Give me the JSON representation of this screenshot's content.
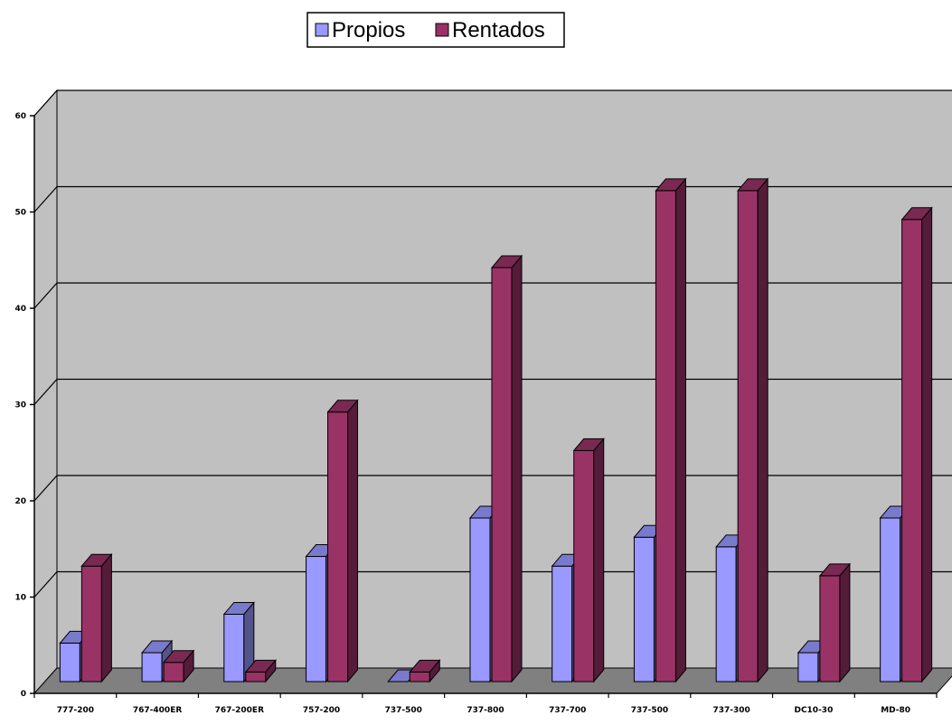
{
  "chart_data": {
    "type": "bar",
    "categories": [
      "777-200",
      "767-400ER",
      "767-200ER",
      "757-200",
      "737-500",
      "737-800",
      "737-700",
      "737-500",
      "737-300",
      "DC10-30",
      "MD-80"
    ],
    "series": [
      {
        "name": "Propios",
        "values": [
          4,
          3,
          7,
          13,
          0,
          17,
          12,
          15,
          14,
          3,
          17
        ],
        "color": "#9999ff"
      },
      {
        "name": "Rentados",
        "values": [
          12,
          2,
          1,
          28,
          1,
          43,
          24,
          51,
          51,
          11,
          48
        ],
        "color": "#993366"
      }
    ],
    "yticks": [
      "0",
      "10",
      "20",
      "30",
      "40",
      "50",
      "60"
    ],
    "ylim": [
      0,
      60
    ],
    "grid": true,
    "legend_position": "top",
    "colors": {
      "wall": "#c0c0c0",
      "floor": "#808080",
      "propios": "#9999ff",
      "rentados": "#993366"
    }
  }
}
